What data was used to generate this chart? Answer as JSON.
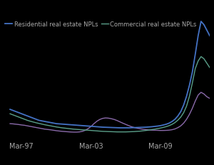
{
  "legend_entries": [
    "Residential real estate NPLs",
    "Commercial real estate NPLs"
  ],
  "legend_colors": [
    "#4472c4",
    "#5ba08a"
  ],
  "line3_color": "#8a6aaa",
  "x_ticks": [
    "Mar-97",
    "Mar-03",
    "Mar-09"
  ],
  "background_color": "#000000",
  "plot_bg_color": "#000000",
  "grid_color": "#555555",
  "text_color": "#aaaaaa",
  "residential_npl": [
    2.8,
    2.7,
    2.6,
    2.5,
    2.4,
    2.3,
    2.2,
    2.1,
    2.0,
    1.9,
    1.8,
    1.75,
    1.7,
    1.65,
    1.6,
    1.55,
    1.5,
    1.48,
    1.46,
    1.44,
    1.42,
    1.4,
    1.38,
    1.36,
    1.34,
    1.32,
    1.3,
    1.28,
    1.26,
    1.24,
    1.22,
    1.2,
    1.18,
    1.17,
    1.16,
    1.15,
    1.14,
    1.13,
    1.12,
    1.12,
    1.12,
    1.12,
    1.13,
    1.14,
    1.15,
    1.16,
    1.17,
    1.18,
    1.2,
    1.22,
    1.25,
    1.28,
    1.32,
    1.38,
    1.45,
    1.55,
    1.7,
    1.9,
    2.2,
    2.6,
    3.2,
    4.0,
    5.0,
    6.2,
    7.8,
    9.5,
    10.8,
    10.5,
    10.0,
    9.5
  ],
  "commercial_npl": [
    2.4,
    2.3,
    2.2,
    2.1,
    2.0,
    1.9,
    1.8,
    1.72,
    1.65,
    1.58,
    1.52,
    1.46,
    1.4,
    1.35,
    1.3,
    1.25,
    1.2,
    1.16,
    1.12,
    1.09,
    1.06,
    1.03,
    1.0,
    0.98,
    0.96,
    0.94,
    0.92,
    0.9,
    0.88,
    0.86,
    0.84,
    0.82,
    0.8,
    0.79,
    0.78,
    0.77,
    0.76,
    0.75,
    0.75,
    0.75,
    0.75,
    0.76,
    0.77,
    0.78,
    0.8,
    0.82,
    0.85,
    0.88,
    0.92,
    0.96,
    1.0,
    1.05,
    1.1,
    1.16,
    1.23,
    1.32,
    1.44,
    1.6,
    1.82,
    2.1,
    2.5,
    3.1,
    4.0,
    5.2,
    6.5,
    7.2,
    7.6,
    7.4,
    7.0,
    6.6
  ],
  "other_npl": [
    1.5,
    1.48,
    1.45,
    1.42,
    1.38,
    1.35,
    1.3,
    1.25,
    1.2,
    1.15,
    1.1,
    1.05,
    1.0,
    0.97,
    0.94,
    0.9,
    0.86,
    0.83,
    0.8,
    0.78,
    0.76,
    0.74,
    0.73,
    0.73,
    0.75,
    0.8,
    0.9,
    1.05,
    1.25,
    1.5,
    1.72,
    1.88,
    1.98,
    2.02,
    2.0,
    1.95,
    1.88,
    1.78,
    1.66,
    1.54,
    1.43,
    1.32,
    1.22,
    1.14,
    1.08,
    1.03,
    0.99,
    0.96,
    0.93,
    0.91,
    0.9,
    0.89,
    0.88,
    0.88,
    0.89,
    0.91,
    0.95,
    1.02,
    1.14,
    1.3,
    1.55,
    1.9,
    2.35,
    2.9,
    3.55,
    4.1,
    4.35,
    4.2,
    3.95,
    3.8
  ],
  "ylim": [
    0,
    11
  ],
  "n_points": 70,
  "x_tick_positions": [
    4,
    28,
    52
  ]
}
